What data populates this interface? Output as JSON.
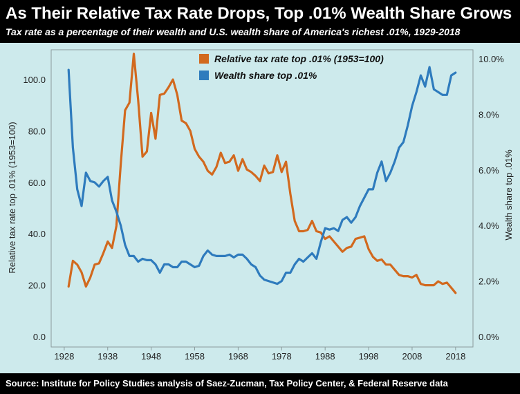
{
  "header": {
    "title": "As Their Relative Tax Rate Drops, Top .01% Wealth Share Grows",
    "subtitle": "Tax rate as a percentage of their wealth and U.S. wealth share of America's richest .01%, 1929-2018"
  },
  "footer": {
    "source": "Source: Institute for Policy Studies analysis of Saez-Zucman, Tax Policy Center, & Federal Reserve data"
  },
  "colors": {
    "tax_series": "#d2691e",
    "wealth_series": "#2e7bbd",
    "plot_background": "#cdeaec",
    "header_background": "#000000"
  },
  "chart_data": {
    "type": "line",
    "title": "As Their Relative Tax Rate Drops, Top .01% Wealth Share Grows",
    "subtitle": "Tax rate as a percentage of their wealth and U.S. wealth share of America's richest .01%, 1929-2018",
    "xlim": [
      1925,
      2022
    ],
    "x_ticks": [
      "1928",
      "1938",
      "1948",
      "1958",
      "1968",
      "1978",
      "1988",
      "1998",
      "2008",
      "2018"
    ],
    "ylabel_left": "Relative tax rate top .01% (1953=100)",
    "ylim_left": [
      0,
      110
    ],
    "y_ticks_left": [
      "0.0",
      "20.0",
      "40.0",
      "60.0",
      "80.0",
      "100.0"
    ],
    "ylabel_right": "Wealth share top .01%",
    "ylim_right": [
      0,
      10
    ],
    "y_ticks_right": [
      "0.0%",
      "2.0%",
      "4.0%",
      "6.0%",
      "8.0%",
      "10.0%"
    ],
    "grid": false,
    "legend_position": "top-center",
    "series": [
      {
        "name": "Relative tax rate top .01% (1953=100)",
        "axis": "left",
        "color": "#d2691e",
        "points": [
          [
            1929,
            19.5
          ],
          [
            1930,
            29.5
          ],
          [
            1931,
            28
          ],
          [
            1932,
            25
          ],
          [
            1933,
            19.5
          ],
          [
            1934,
            23
          ],
          [
            1935,
            28
          ],
          [
            1936,
            28.5
          ],
          [
            1937,
            32.5
          ],
          [
            1938,
            37
          ],
          [
            1939,
            34.5
          ],
          [
            1940,
            43
          ],
          [
            1941,
            67
          ],
          [
            1942,
            88
          ],
          [
            1943,
            91
          ],
          [
            1944,
            110
          ],
          [
            1945,
            92
          ],
          [
            1946,
            70
          ],
          [
            1947,
            72
          ],
          [
            1948,
            87
          ],
          [
            1949,
            77
          ],
          [
            1950,
            94
          ],
          [
            1951,
            94.5
          ],
          [
            1952,
            97
          ],
          [
            1953,
            100
          ],
          [
            1954,
            94
          ],
          [
            1955,
            84
          ],
          [
            1956,
            83
          ],
          [
            1957,
            80
          ],
          [
            1958,
            73
          ],
          [
            1959,
            70
          ],
          [
            1960,
            68
          ],
          [
            1961,
            64.5
          ],
          [
            1962,
            63
          ],
          [
            1963,
            66
          ],
          [
            1964,
            71.5
          ],
          [
            1965,
            67.5
          ],
          [
            1966,
            68
          ],
          [
            1967,
            70.5
          ],
          [
            1968,
            64.5
          ],
          [
            1969,
            69
          ],
          [
            1970,
            65
          ],
          [
            1971,
            64
          ],
          [
            1972,
            62.5
          ],
          [
            1973,
            60.5
          ],
          [
            1974,
            66.5
          ],
          [
            1975,
            63.5
          ],
          [
            1976,
            64
          ],
          [
            1977,
            70.5
          ],
          [
            1978,
            64
          ],
          [
            1979,
            68
          ],
          [
            1980,
            55.5
          ],
          [
            1981,
            45
          ],
          [
            1982,
            41
          ],
          [
            1983,
            41
          ],
          [
            1984,
            41.5
          ],
          [
            1985,
            45
          ],
          [
            1986,
            41
          ],
          [
            1987,
            40.5
          ],
          [
            1988,
            38
          ],
          [
            1989,
            39
          ],
          [
            1990,
            37
          ],
          [
            1991,
            35
          ],
          [
            1992,
            33
          ],
          [
            1993,
            34.5
          ],
          [
            1994,
            35
          ],
          [
            1995,
            38
          ],
          [
            1996,
            38.5
          ],
          [
            1997,
            39
          ],
          [
            1998,
            34
          ],
          [
            1999,
            31
          ],
          [
            2000,
            29.5
          ],
          [
            2001,
            30
          ],
          [
            2002,
            28
          ],
          [
            2003,
            28
          ],
          [
            2004,
            26
          ],
          [
            2005,
            24
          ],
          [
            2006,
            23.5
          ],
          [
            2007,
            23.5
          ],
          [
            2008,
            23
          ],
          [
            2009,
            24
          ],
          [
            2010,
            20.5
          ],
          [
            2011,
            20
          ],
          [
            2012,
            20
          ],
          [
            2013,
            20
          ],
          [
            2014,
            21.5
          ],
          [
            2015,
            20.5
          ],
          [
            2016,
            21
          ],
          [
            2017,
            19
          ],
          [
            2018,
            17
          ]
        ]
      },
      {
        "name": "Wealth share top .01%",
        "axis": "right",
        "color": "#2e7bbd",
        "points": [
          [
            1929,
            9.6
          ],
          [
            1930,
            6.8
          ],
          [
            1931,
            5.3
          ],
          [
            1932,
            4.7
          ],
          [
            1933,
            5.9
          ],
          [
            1934,
            5.6
          ],
          [
            1935,
            5.55
          ],
          [
            1936,
            5.4
          ],
          [
            1937,
            5.6
          ],
          [
            1938,
            5.75
          ],
          [
            1939,
            4.9
          ],
          [
            1940,
            4.5
          ],
          [
            1941,
            4.0
          ],
          [
            1942,
            3.3
          ],
          [
            1943,
            2.9
          ],
          [
            1944,
            2.9
          ],
          [
            1945,
            2.7
          ],
          [
            1946,
            2.8
          ],
          [
            1947,
            2.75
          ],
          [
            1948,
            2.75
          ],
          [
            1949,
            2.6
          ],
          [
            1950,
            2.3
          ],
          [
            1951,
            2.6
          ],
          [
            1952,
            2.6
          ],
          [
            1953,
            2.5
          ],
          [
            1954,
            2.5
          ],
          [
            1955,
            2.7
          ],
          [
            1956,
            2.7
          ],
          [
            1957,
            2.6
          ],
          [
            1958,
            2.5
          ],
          [
            1959,
            2.55
          ],
          [
            1960,
            2.9
          ],
          [
            1961,
            3.1
          ],
          [
            1962,
            2.95
          ],
          [
            1963,
            2.9
          ],
          [
            1964,
            2.9
          ],
          [
            1965,
            2.9
          ],
          [
            1966,
            2.95
          ],
          [
            1967,
            2.85
          ],
          [
            1968,
            2.95
          ],
          [
            1969,
            2.95
          ],
          [
            1970,
            2.8
          ],
          [
            1971,
            2.6
          ],
          [
            1972,
            2.5
          ],
          [
            1973,
            2.2
          ],
          [
            1974,
            2.05
          ],
          [
            1975,
            2.0
          ],
          [
            1976,
            1.95
          ],
          [
            1977,
            1.9
          ],
          [
            1978,
            2.0
          ],
          [
            1979,
            2.3
          ],
          [
            1980,
            2.3
          ],
          [
            1981,
            2.6
          ],
          [
            1982,
            2.8
          ],
          [
            1983,
            2.7
          ],
          [
            1984,
            2.85
          ],
          [
            1985,
            3.0
          ],
          [
            1986,
            2.8
          ],
          [
            1987,
            3.4
          ],
          [
            1988,
            3.9
          ],
          [
            1989,
            3.85
          ],
          [
            1990,
            3.9
          ],
          [
            1991,
            3.8
          ],
          [
            1992,
            4.2
          ],
          [
            1993,
            4.3
          ],
          [
            1994,
            4.1
          ],
          [
            1995,
            4.3
          ],
          [
            1996,
            4.7
          ],
          [
            1997,
            5.0
          ],
          [
            1998,
            5.3
          ],
          [
            1999,
            5.3
          ],
          [
            2000,
            5.9
          ],
          [
            2001,
            6.3
          ],
          [
            2002,
            5.6
          ],
          [
            2003,
            5.9
          ],
          [
            2004,
            6.3
          ],
          [
            2005,
            6.8
          ],
          [
            2006,
            7.0
          ],
          [
            2007,
            7.6
          ],
          [
            2008,
            8.3
          ],
          [
            2009,
            8.8
          ],
          [
            2010,
            9.4
          ],
          [
            2011,
            9.0
          ],
          [
            2012,
            9.7
          ],
          [
            2013,
            8.9
          ],
          [
            2014,
            8.8
          ],
          [
            2015,
            8.7
          ],
          [
            2016,
            8.7
          ],
          [
            2017,
            9.4
          ],
          [
            2018,
            9.5
          ]
        ]
      }
    ]
  }
}
